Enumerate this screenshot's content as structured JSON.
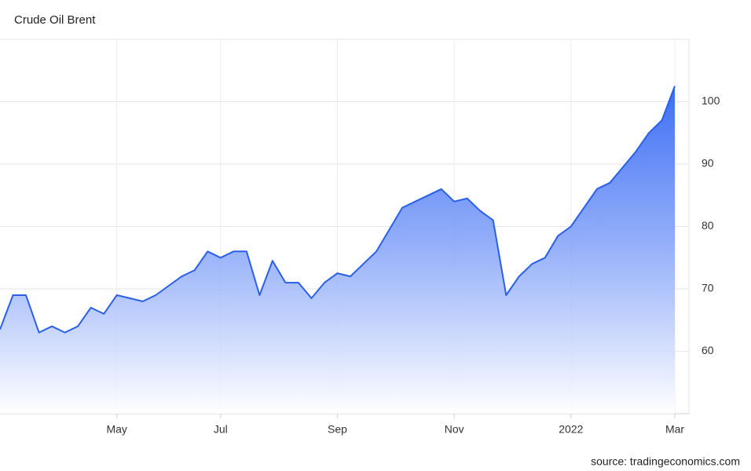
{
  "chart_data": {
    "type": "area-line",
    "title": "Crude Oil Brent",
    "source": "source: tradingeconomics.com",
    "categories": [
      null,
      null,
      null,
      null,
      null,
      null,
      null,
      null,
      null,
      "May",
      null,
      null,
      null,
      null,
      null,
      null,
      null,
      "Jul",
      null,
      null,
      null,
      null,
      null,
      null,
      null,
      null,
      "Sep",
      null,
      null,
      null,
      null,
      null,
      null,
      null,
      null,
      "Nov",
      null,
      null,
      null,
      null,
      null,
      null,
      null,
      null,
      "2022",
      null,
      null,
      null,
      null,
      null,
      null,
      null,
      "Mar"
    ],
    "series": [
      {
        "name": "Crude Oil Brent",
        "color": "#2a5fe8",
        "values": [
          63.5,
          69,
          69,
          63,
          64,
          63,
          64,
          67,
          66,
          69,
          68.5,
          68,
          69,
          70.5,
          72,
          73,
          76,
          75,
          76,
          76,
          69,
          74.5,
          71,
          71,
          68.5,
          71,
          72.5,
          72,
          74,
          76,
          79.5,
          83,
          84,
          85,
          86,
          84,
          84.5,
          82.5,
          81,
          69,
          72,
          74,
          75,
          78.5,
          80,
          83,
          86,
          87,
          89.5,
          92,
          95,
          97,
          102.5
        ]
      }
    ],
    "ylim": [
      50,
      110
    ],
    "yticks": [
      60,
      70,
      80,
      90,
      100
    ],
    "grid": true
  }
}
